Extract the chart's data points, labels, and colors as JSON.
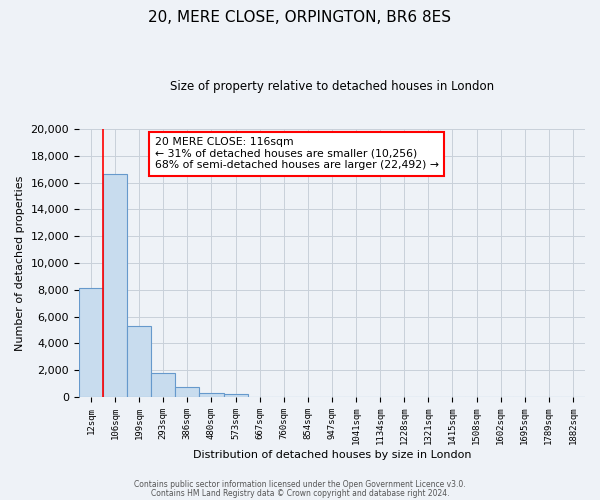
{
  "title": "20, MERE CLOSE, ORPINGTON, BR6 8ES",
  "subtitle": "Size of property relative to detached houses in London",
  "xlabel": "Distribution of detached houses by size in London",
  "ylabel": "Number of detached properties",
  "bar_color": "#c8dcee",
  "bar_edge_color": "#6699cc",
  "categories": [
    "12sqm",
    "106sqm",
    "199sqm",
    "293sqm",
    "386sqm",
    "480sqm",
    "573sqm",
    "667sqm",
    "760sqm",
    "854sqm",
    "947sqm",
    "1041sqm",
    "1134sqm",
    "1228sqm",
    "1321sqm",
    "1415sqm",
    "1508sqm",
    "1602sqm",
    "1695sqm",
    "1789sqm",
    "1882sqm"
  ],
  "values": [
    8100,
    16600,
    5300,
    1800,
    750,
    300,
    220,
    0,
    0,
    0,
    0,
    0,
    0,
    0,
    0,
    0,
    0,
    0,
    0,
    0,
    0
  ],
  "ylim": [
    0,
    20000
  ],
  "yticks": [
    0,
    2000,
    4000,
    6000,
    8000,
    10000,
    12000,
    14000,
    16000,
    18000,
    20000
  ],
  "annotation_title": "20 MERE CLOSE: 116sqm",
  "annotation_line1": "← 31% of detached houses are smaller (10,256)",
  "annotation_line2": "68% of semi-detached houses are larger (22,492) →",
  "vline_x_bar": 1,
  "footer1": "Contains HM Land Registry data © Crown copyright and database right 2024.",
  "footer2": "Contains public sector information licensed under the Open Government Licence v3.0.",
  "background_color": "#eef2f7",
  "plot_bg_color": "#eef2f7",
  "grid_color": "#c8d0da"
}
